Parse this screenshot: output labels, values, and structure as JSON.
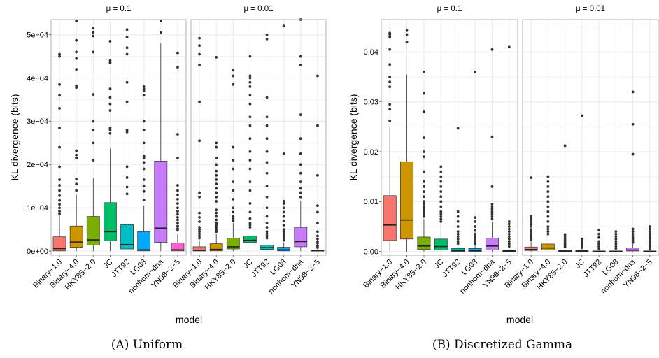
{
  "chart_data": [
    {
      "type": "box",
      "caption": "(A) Uniform",
      "xlabel": "model",
      "ylabel": "KL divergence (bits)",
      "ylim": [
        -9.5e-06,
        0.000535
      ],
      "yticks": [
        0,
        0.0001,
        0.0002,
        0.0003,
        0.0004,
        0.0005
      ],
      "ytick_labels": [
        "0e+00",
        "1e−04",
        "2e−04",
        "3e−04",
        "4e−04",
        "5e−04"
      ],
      "categories": [
        "Binary−1.0",
        "Binary−4.0",
        "HKY85−2.0",
        "JC",
        "JTT92",
        "LG08",
        "nonhom−dna",
        "YN98−2−5"
      ],
      "panels": [
        {
          "strip_label": "μ = 0.1",
          "boxes": [
            {
              "q1": 5e-07,
              "median": 6e-06,
              "q3": 3.3e-05,
              "low": 0,
              "high": 8.2e-05,
              "outliers": [
                8.6e-05,
                9.2e-05,
                0.0001,
                0.000108,
                0.000117,
                0.000128,
                0.00014,
                0.000152,
                0.000165,
                0.000195,
                0.00024,
                0.000285,
                0.00033,
                0.00036,
                0.000385,
                0.00045,
                0.000455
              ]
            },
            {
              "q1": 9e-06,
              "median": 2.1e-05,
              "q3": 5.8e-05,
              "low": 0,
              "high": 0.00013,
              "outliers": [
                0.00014,
                0.000155,
                0.000167,
                0.000215,
                0.000222,
                0.000232,
                0.000378,
                0.000382,
                0.00042,
                0.000445,
                0.00046,
                0.000487,
                0.000532
              ]
            },
            {
              "q1": 1.4e-05,
              "median": 2.6e-05,
              "q3": 8e-05,
              "low": 0,
              "high": 0.000168,
              "outliers": [
                0.00021,
                0.00025,
                0.00028,
                0.0003,
                0.000362,
                0.00046,
                0.000497,
                0.000505,
                0.000515
              ]
            },
            {
              "q1": 2.4e-05,
              "median": 4.5e-05,
              "q3": 0.000112,
              "low": 0,
              "high": 0.000237,
              "outliers": [
                0.000272,
                0.00028,
                0.000285,
                0.000325,
                0.00034,
                0.000355,
                0.000375,
                0.000435,
                0.00044,
                0.000485
              ]
            },
            {
              "q1": 5e-06,
              "median": 1.5e-05,
              "q3": 6.1e-05,
              "low": 0,
              "high": 0.000128,
              "outliers": [
                0.000132,
                0.000148,
                0.00017,
                0.000195,
                0.000275,
                0.00028,
                0.000345,
                0.00039,
                0.000455,
                0.00047,
                0.000495,
                0.000512
              ]
            },
            {
              "q1": 5e-07,
              "median": 3e-06,
              "q3": 4.5e-05,
              "low": 0,
              "high": 0.000105,
              "outliers": [
                0.000118,
                0.000138,
                0.00015,
                0.000165,
                0.00019,
                0.000205,
                0.000215,
                0.00022,
                0.00025,
                0.00028,
                0.0003,
                0.00036,
                0.00037,
                0.000375,
                0.00038
              ]
            },
            {
              "q1": 2e-05,
              "median": 5.3e-05,
              "q3": 0.000208,
              "low": 0,
              "high": 0.00048,
              "outliers": [
                0.000505,
                0.000532
              ]
            },
            {
              "q1": 5e-07,
              "median": 3e-06,
              "q3": 1.9e-05,
              "low": 0,
              "high": 4e-05,
              "outliers": [
                4.8e-05,
                5.2e-05,
                5.8e-05,
                6.5e-05,
                7.2e-05,
                7.8e-05,
                8.5e-05,
                9.2e-05,
                0.0001,
                0.00011,
                0.00012,
                0.00013,
                0.00014,
                0.000152,
                0.000215,
                0.00027,
                0.000425,
                0.000458
              ]
            }
          ]
        },
        {
          "strip_label": "μ = 0.01",
          "boxes": [
            {
              "q1": 3e-07,
              "median": 2e-06,
              "q3": 1e-05,
              "low": 0,
              "high": 2.5e-05,
              "outliers": [
                3e-05,
                3.5e-05,
                4e-05,
                4.5e-05,
                5e-05,
                5.5e-05,
                6.8e-05,
                7.8e-05,
                8.8e-05,
                0.000125,
                0.000135,
                0.000255,
                0.000345,
                0.00043,
                0.000455,
                0.000475,
                0.000492
              ]
            },
            {
              "q1": 5e-07,
              "median": 4e-06,
              "q3": 1.7e-05,
              "low": 0,
              "high": 4e-05,
              "outliers": [
                4.5e-05,
                5e-05,
                5.5e-05,
                6e-05,
                6.5e-05,
                7.2e-05,
                8e-05,
                8.8e-05,
                9.5e-05,
                0.000115,
                0.000125,
                0.000135,
                0.000145,
                0.000155,
                0.000165,
                0.000175,
                0.000185,
                0.0002,
                0.000215,
                0.00024,
                0.00025,
                0.000448
              ]
            },
            {
              "q1": 5e-06,
              "median": 1e-05,
              "q3": 3e-05,
              "low": 0,
              "high": 6.5e-05,
              "outliers": [
                7e-05,
                7.5e-05,
                8e-05,
                9e-05,
                0.0001,
                0.00012,
                0.00014,
                0.00016,
                0.00019,
                0.00021,
                0.00024,
                0.000385,
                0.000405,
                0.000418
              ]
            },
            {
              "q1": 2e-05,
              "median": 2.5e-05,
              "q3": 3.5e-05,
              "low": 8e-06,
              "high": 5e-05,
              "outliers": [
                5.5e-05,
                6e-05,
                6.5e-05,
                7.5e-05,
                9e-05,
                0.00011,
                0.00014,
                0.00016,
                0.00019,
                0.00021,
                0.00023,
                0.00026,
                0.00029,
                0.00031,
                0.00034,
                0.00036,
                0.00038,
                0.00039,
                0.0004,
                0.000405,
                0.00045
              ]
            },
            {
              "q1": 4e-06,
              "median": 8e-06,
              "q3": 1.4e-05,
              "low": 0,
              "high": 2.4e-05,
              "outliers": [
                3e-05,
                3.5e-05,
                4e-05,
                4.5e-05,
                5.5e-05,
                6.5e-05,
                8e-05,
                0.0001,
                0.000125,
                0.00015,
                0.00018,
                0.000205,
                0.00023,
                0.00026,
                0.00029,
                0.00031,
                0.000355,
                0.00049,
                0.0005
              ]
            },
            {
              "q1": 5e-07,
              "median": 3e-06,
              "q3": 9e-06,
              "low": 0,
              "high": 2e-05,
              "outliers": [
                2.5e-05,
                3e-05,
                3.5e-05,
                4e-05,
                4.5e-05,
                5e-05,
                6e-05,
                7e-05,
                8e-05,
                9e-05,
                0.0001,
                0.00011,
                0.000115,
                0.000225,
                0.00052
              ]
            },
            {
              "q1": 1e-05,
              "median": 2.2e-05,
              "q3": 5.5e-05,
              "low": 0,
              "high": 0.000115,
              "outliers": [
                0.000125,
                0.000135,
                0.000145,
                0.00016,
                0.00018,
                0.0002,
                0.000225,
                0.00026,
                0.000315,
                0.00043,
                0.00045,
                0.000535
              ]
            },
            {
              "q1": 0,
              "median": 1e-06,
              "q3": 2e-06,
              "low": 0,
              "high": 4e-06,
              "outliers": [
                8e-06,
                1.2e-05,
                1.8e-05,
                2.2e-05,
                2.8e-05,
                3.5e-05,
                4.5e-05,
                6.5e-05,
                9e-05,
                0.000105,
                0.000175,
                0.00029,
                0.000405
              ]
            }
          ]
        }
      ]
    },
    {
      "type": "box",
      "caption": "(B) Discretized Gamma",
      "xlabel": "model",
      "ylabel": "KL divergence (bits)",
      "ylim": [
        -0.00075,
        0.0465
      ],
      "yticks": [
        0,
        0.01,
        0.02,
        0.03,
        0.04
      ],
      "ytick_labels": [
        "0.00",
        "0.01",
        "0.02",
        "0.03",
        "0.04"
      ],
      "categories": [
        "Binary−1.0",
        "Binary−4.0",
        "HKY85−2.0",
        "JC",
        "JTT92",
        "LG08",
        "nonhom−dna",
        "YN98−2−5"
      ],
      "panels": [
        {
          "strip_label": "μ = 0.1",
          "boxes": [
            {
              "q1": 0.0022,
              "median": 0.0053,
              "q3": 0.0112,
              "low": 0,
              "high": 0.025,
              "outliers": [
                0.0262,
                0.0285,
                0.0295,
                0.033,
                0.034,
                0.035,
                0.0375,
                0.0405,
                0.043,
                0.0435,
                0.0438
              ]
            },
            {
              "q1": 0.0025,
              "median": 0.0063,
              "q3": 0.018,
              "low": 0,
              "high": 0.0355,
              "outliers": [
                0.042,
                0.0435,
                0.0443
              ]
            },
            {
              "q1": 0.0004,
              "median": 0.0011,
              "q3": 0.0029,
              "low": 0,
              "high": 0.0065,
              "outliers": [
                0.007,
                0.0075,
                0.008,
                0.0085,
                0.009,
                0.0095,
                0.01,
                0.011,
                0.012,
                0.013,
                0.014,
                0.016,
                0.019,
                0.02,
                0.0228,
                0.028,
                0.0317,
                0.036
              ]
            },
            {
              "q1": 0.0003,
              "median": 0.001,
              "q3": 0.0025,
              "low": 0,
              "high": 0.0055,
              "outliers": [
                0.006,
                0.0065,
                0.007,
                0.0075,
                0.008,
                0.009,
                0.01,
                0.011,
                0.012,
                0.013,
                0.014,
                0.015,
                0.016,
                0.017
              ]
            },
            {
              "q1": 0,
              "median": 0.0002,
              "q3": 0.0006,
              "low": 0,
              "high": 0.0012,
              "outliers": [
                0.0016,
                0.002,
                0.0025,
                0.003,
                0.0035,
                0.004,
                0.005,
                0.006,
                0.007,
                0.008,
                0.0247
              ]
            },
            {
              "q1": 0,
              "median": 0.0002,
              "q3": 0.0006,
              "low": 0,
              "high": 0.0012,
              "outliers": [
                0.0016,
                0.002,
                0.0025,
                0.003,
                0.0035,
                0.0042,
                0.005,
                0.006,
                0.0068,
                0.036
              ]
            },
            {
              "q1": 0.0003,
              "median": 0.0011,
              "q3": 0.0027,
              "low": 0,
              "high": 0.006,
              "outliers": [
                0.0065,
                0.007,
                0.0075,
                0.008,
                0.0085,
                0.009,
                0.0095,
                0.013,
                0.023,
                0.0405
              ]
            },
            {
              "q1": 0,
              "median": 0.0001,
              "q3": 0.0002,
              "low": 0,
              "high": 0.0005,
              "outliers": [
                0.001,
                0.0015,
                0.002,
                0.0025,
                0.003,
                0.0035,
                0.004,
                0.0045,
                0.005,
                0.0055,
                0.006,
                0.041
              ]
            }
          ]
        },
        {
          "strip_label": "μ = 0.01",
          "boxes": [
            {
              "q1": 0.0002,
              "median": 0.0004,
              "q3": 0.0009,
              "low": 0,
              "high": 0.002,
              "outliers": [
                0.0024,
                0.0028,
                0.0032,
                0.0036,
                0.004,
                0.0044,
                0.005,
                0.0055,
                0.006,
                0.0065,
                0.007,
                0.0148
              ]
            },
            {
              "q1": 0.0003,
              "median": 0.0007,
              "q3": 0.0015,
              "low": 0,
              "high": 0.003,
              "outliers": [
                0.0035,
                0.004,
                0.0045,
                0.005,
                0.006,
                0.007,
                0.008,
                0.009,
                0.01,
                0.011,
                0.012,
                0.013,
                0.014,
                0.015
              ]
            },
            {
              "q1": 0,
              "median": 0.0001,
              "q3": 0.0003,
              "low": 0,
              "high": 0.0007,
              "outliers": [
                0.0009,
                0.0012,
                0.0015,
                0.0018,
                0.0022,
                0.0026,
                0.003,
                0.0034,
                0.0212
              ]
            },
            {
              "q1": 0,
              "median": 0.0001,
              "q3": 0.0003,
              "low": 0,
              "high": 0.0006,
              "outliers": [
                0.0008,
                0.001,
                0.0012,
                0.0015,
                0.0018,
                0.0021,
                0.0025,
                0.0272
              ]
            },
            {
              "q1": 0,
              "median": 5e-05,
              "q3": 0.0001,
              "low": 0,
              "high": 0.0003,
              "outliers": [
                0.0006,
                0.001,
                0.0015,
                0.002,
                0.0028,
                0.0035,
                0.0043
              ]
            },
            {
              "q1": 0,
              "median": 5e-05,
              "q3": 0.0001,
              "low": 0,
              "high": 0.0003,
              "outliers": [
                0.0006,
                0.001,
                0.0015,
                0.002,
                0.0025,
                0.003,
                0.0035,
                0.004
              ]
            },
            {
              "q1": 0.0001,
              "median": 0.0003,
              "q3": 0.0007,
              "low": 0,
              "high": 0.0015,
              "outliers": [
                0.0018,
                0.0022,
                0.0026,
                0.003,
                0.0035,
                0.004,
                0.0045,
                0.0195,
                0.0255,
                0.032
              ]
            },
            {
              "q1": 0,
              "median": 5e-05,
              "q3": 0.0001,
              "low": 0,
              "high": 0.0002,
              "outliers": [
                0.0005,
                0.0008,
                0.0012,
                0.0016,
                0.002,
                0.0025,
                0.003,
                0.0035,
                0.004,
                0.0045,
                0.005
              ]
            }
          ]
        }
      ]
    }
  ],
  "colors": {
    "series": [
      "#F8766D",
      "#CD9600",
      "#7CAE00",
      "#00BE67",
      "#00BFC4",
      "#00A9FF",
      "#C77CFF",
      "#FF61CC"
    ],
    "grid": "#EBEBEB",
    "panel_border": "#B3B3B3",
    "axis_text": "#4D4D4D",
    "text": "#000000",
    "point": "#333333"
  }
}
